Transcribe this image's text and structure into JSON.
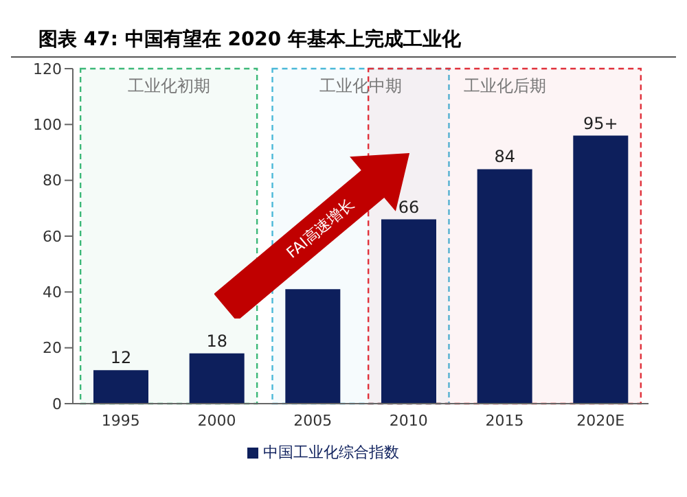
{
  "chart_data": {
    "type": "bar",
    "title": "图表 47:   中国有望在 2020 年基本上完成工业化",
    "categories": [
      "1995",
      "2000",
      "2005",
      "2010",
      "2015",
      "2020E"
    ],
    "series": [
      {
        "name": "中国工业化综合指数",
        "color": "#0d1f5c",
        "values": [
          12,
          18,
          41,
          66,
          84,
          96
        ]
      }
    ],
    "value_labels": [
      "12",
      "18",
      null,
      "66",
      "84",
      "95+"
    ],
    "ylim": [
      0,
      120
    ],
    "yticks": [
      0,
      20,
      40,
      60,
      80,
      100,
      120
    ],
    "grid": false,
    "legend": "bottom",
    "bands": [
      {
        "axis": "x",
        "from": "1995",
        "to": "2000",
        "label": "工业化初期",
        "color": "#3cb878"
      },
      {
        "axis": "x",
        "from": "2005",
        "to": "2010",
        "label": "工业化中期",
        "color": "#4ab8d8"
      },
      {
        "axis": "x",
        "from": "2010",
        "to": "2020E",
        "label": "工业化后期",
        "color": "#e0303a"
      }
    ],
    "annotations": [
      "FAI高速增长"
    ]
  }
}
